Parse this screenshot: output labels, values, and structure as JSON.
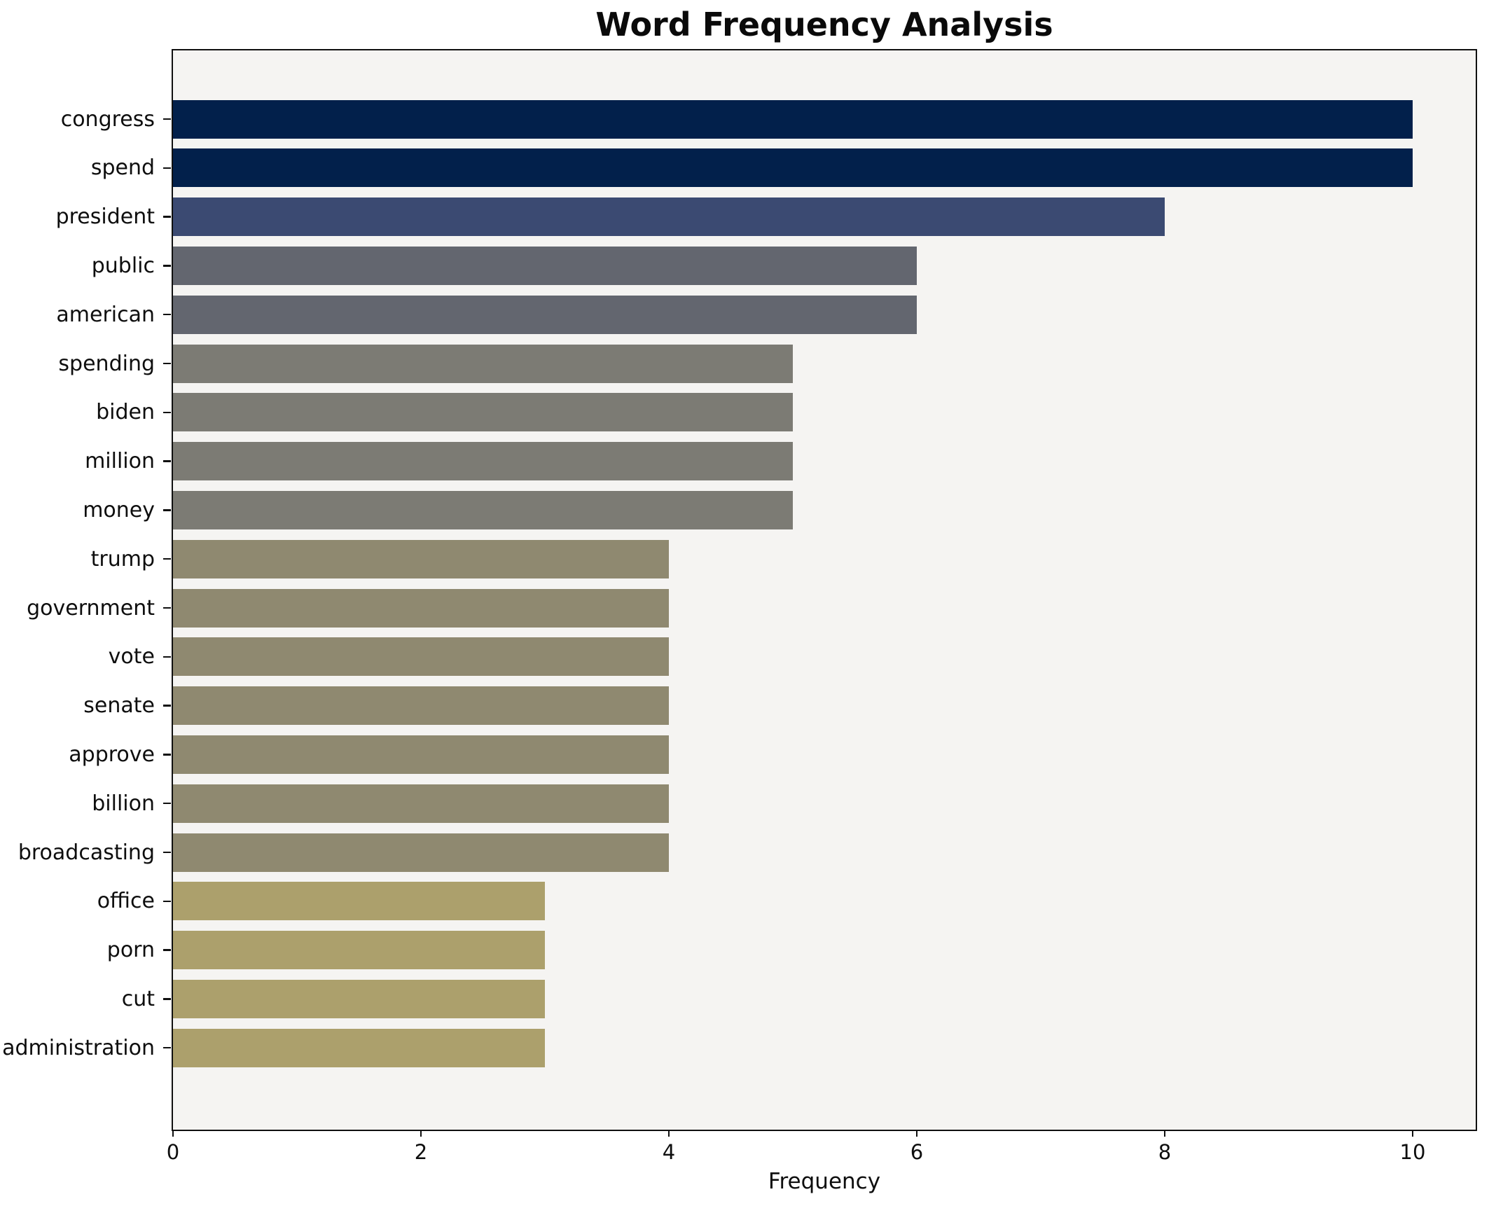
{
  "chart_data": {
    "type": "bar",
    "orientation": "horizontal",
    "title": "Word Frequency Analysis",
    "xlabel": "Frequency",
    "ylabel": "",
    "xlim": [
      0,
      10.5
    ],
    "x_ticks": [
      0,
      2,
      4,
      6,
      8,
      10
    ],
    "grid": false,
    "legend_position": "none",
    "plot_background": "#f5f4f2",
    "spine_color": "#101010",
    "categories": [
      "congress",
      "spend",
      "president",
      "public",
      "american",
      "spending",
      "biden",
      "million",
      "money",
      "trump",
      "government",
      "vote",
      "senate",
      "approve",
      "billion",
      "broadcasting",
      "office",
      "porn",
      "cut",
      "administration"
    ],
    "values": [
      10,
      10,
      8,
      6,
      6,
      5,
      5,
      5,
      5,
      4,
      4,
      4,
      4,
      4,
      4,
      4,
      3,
      3,
      3,
      3
    ],
    "bar_colors": [
      "#02204b",
      "#02204b",
      "#3b4a72",
      "#63666f",
      "#63666f",
      "#7c7b74",
      "#7c7b74",
      "#7c7b74",
      "#7c7b74",
      "#8f8970",
      "#8f8970",
      "#8f8970",
      "#8f8970",
      "#8f8970",
      "#8f8970",
      "#8f8970",
      "#aca06c",
      "#aca06c",
      "#aca06c",
      "#aca06c"
    ]
  }
}
